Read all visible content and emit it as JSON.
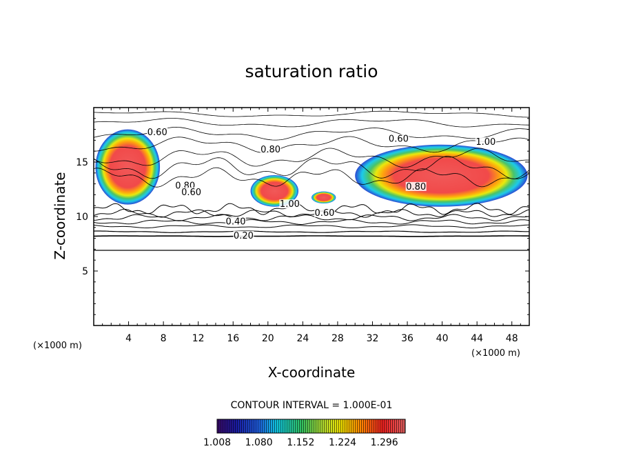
{
  "chart_data": {
    "type": "heatmap",
    "title": "saturation ratio",
    "xlabel": "X-coordinate",
    "ylabel": "Z-coordinate",
    "x_unit_left": "(×1000 m)",
    "x_unit_right": "(×1000 m)",
    "xlim": [
      0,
      50
    ],
    "ylim": [
      0,
      20
    ],
    "x_ticks": [
      4,
      8,
      12,
      16,
      20,
      24,
      28,
      32,
      36,
      40,
      44,
      48
    ],
    "y_ticks": [
      5,
      10,
      15
    ],
    "contour_interval_text": "CONTOUR INTERVAL = 1.000E-01",
    "contour_labels": [
      {
        "text": "0.60",
        "x": 7.3,
        "z": 17.6
      },
      {
        "text": "0.80",
        "x": 20.3,
        "z": 16.0
      },
      {
        "text": "0.60",
        "x": 35.0,
        "z": 17.0
      },
      {
        "text": "1.00",
        "x": 45.0,
        "z": 16.7
      },
      {
        "text": "0.80",
        "x": 10.5,
        "z": 12.7
      },
      {
        "text": "0.60",
        "x": 11.2,
        "z": 12.1
      },
      {
        "text": "1.00",
        "x": 22.5,
        "z": 11.0
      },
      {
        "text": "0.60",
        "x": 26.5,
        "z": 10.2
      },
      {
        "text": "0.40",
        "x": 16.3,
        "z": 9.4
      },
      {
        "text": "0.20",
        "x": 17.2,
        "z": 8.1
      },
      {
        "text": "0.80",
        "x": 37.0,
        "z": 12.6
      }
    ],
    "colorbar": {
      "min": 1.008,
      "max": 1.332,
      "tick_labels": [
        "1.008",
        "1.080",
        "1.152",
        "1.224",
        "1.296"
      ]
    },
    "supersaturated_regions": [
      {
        "x": [
          0.2,
          7.6
        ],
        "z": [
          11.1,
          18.0
        ],
        "peak": 1.3
      },
      {
        "x": [
          18.0,
          23.5
        ],
        "z": [
          10.9,
          13.8
        ],
        "peak": 1.28
      },
      {
        "x": [
          25.0,
          27.8
        ],
        "z": [
          11.2,
          12.3
        ],
        "peak": 1.12
      },
      {
        "x": [
          30.0,
          49.8
        ],
        "z": [
          10.9,
          16.6
        ],
        "peak": 1.3
      }
    ],
    "grid": false
  }
}
